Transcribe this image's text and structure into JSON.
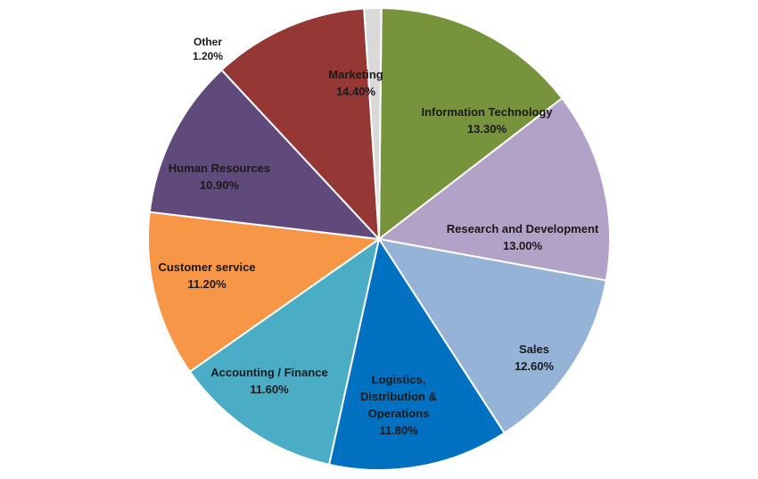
{
  "chart_data": {
    "type": "pie",
    "title": "",
    "slices": [
      {
        "label": [
          "Marketing"
        ],
        "value": 14.4,
        "display": "14.40%",
        "color": "#77933c"
      },
      {
        "label": [
          "Information Technology"
        ],
        "value": 13.3,
        "display": "13.30%",
        "color": "#b3a2c7"
      },
      {
        "label": [
          "Research and Development"
        ],
        "value": 13.0,
        "display": "13.00%",
        "color": "#95b3d7"
      },
      {
        "label": [
          "Sales"
        ],
        "value": 12.6,
        "display": "12.60%",
        "color": "#0070c0"
      },
      {
        "label": [
          "Logistics,",
          "Distribution &",
          "Operations"
        ],
        "value": 11.8,
        "display": "11.80%",
        "color": "#4bacc6"
      },
      {
        "label": [
          "Accounting / Finance"
        ],
        "value": 11.6,
        "display": "11.60%",
        "color": "#f79646"
      },
      {
        "label": [
          "Customer service"
        ],
        "value": 11.2,
        "display": "11.20%",
        "color": "#604a7b"
      },
      {
        "label": [
          "Human Resources"
        ],
        "value": 10.9,
        "display": "10.90%",
        "color": "#953735"
      },
      {
        "label": [
          "Other"
        ],
        "value": 1.2,
        "display": "1.20%",
        "color": "#d9d9d9"
      }
    ]
  }
}
